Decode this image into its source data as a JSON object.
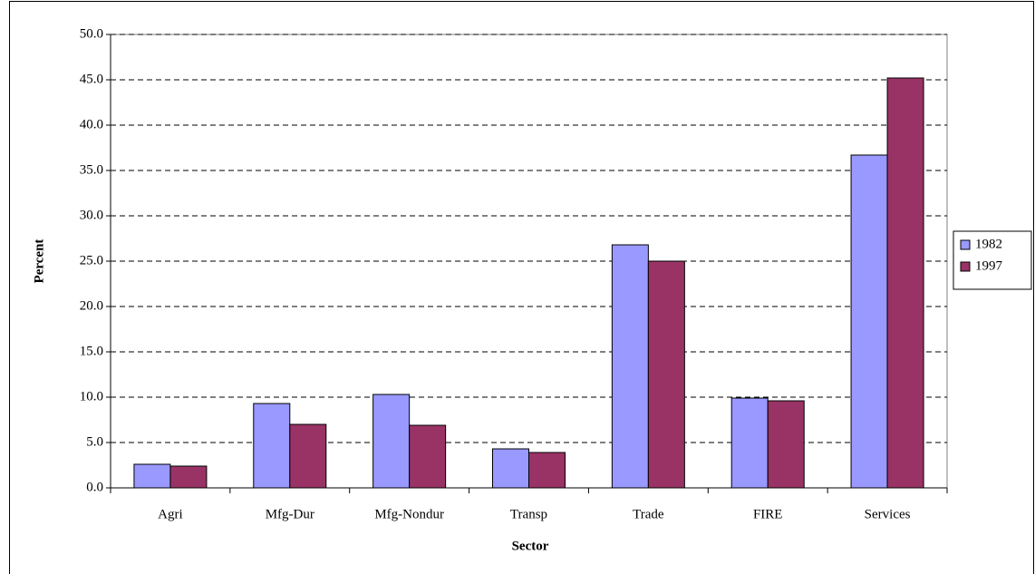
{
  "chart_data": {
    "type": "bar",
    "x_label": "Sector",
    "y_label": "Percent",
    "categories": [
      "Agri",
      "Mfg-Dur",
      "Mfg-Nondur",
      "Transp",
      "Trade",
      "FIRE",
      "Services"
    ],
    "series": [
      {
        "name": "1982",
        "color": "#9999ff",
        "values": [
          2.6,
          9.3,
          10.3,
          4.3,
          26.8,
          9.9,
          36.7
        ]
      },
      {
        "name": "1997",
        "color": "#993366",
        "values": [
          2.4,
          7.0,
          6.9,
          3.9,
          25.0,
          9.6,
          45.2
        ]
      }
    ],
    "ylim": [
      0,
      50
    ],
    "yticks": [
      {
        "value": 0,
        "label": "0.0"
      },
      {
        "value": 5,
        "label": "5.0"
      },
      {
        "value": 10,
        "label": "10.0"
      },
      {
        "value": 15,
        "label": "15.0"
      },
      {
        "value": 20,
        "label": "20.0"
      },
      {
        "value": 25,
        "label": "25.0"
      },
      {
        "value": 30,
        "label": "30.0"
      },
      {
        "value": 35,
        "label": "35.0"
      },
      {
        "value": 40,
        "label": "40.0"
      },
      {
        "value": 45,
        "label": "45.0"
      },
      {
        "value": 50,
        "label": "50.0"
      }
    ],
    "grid": true,
    "legend_position": "right"
  }
}
